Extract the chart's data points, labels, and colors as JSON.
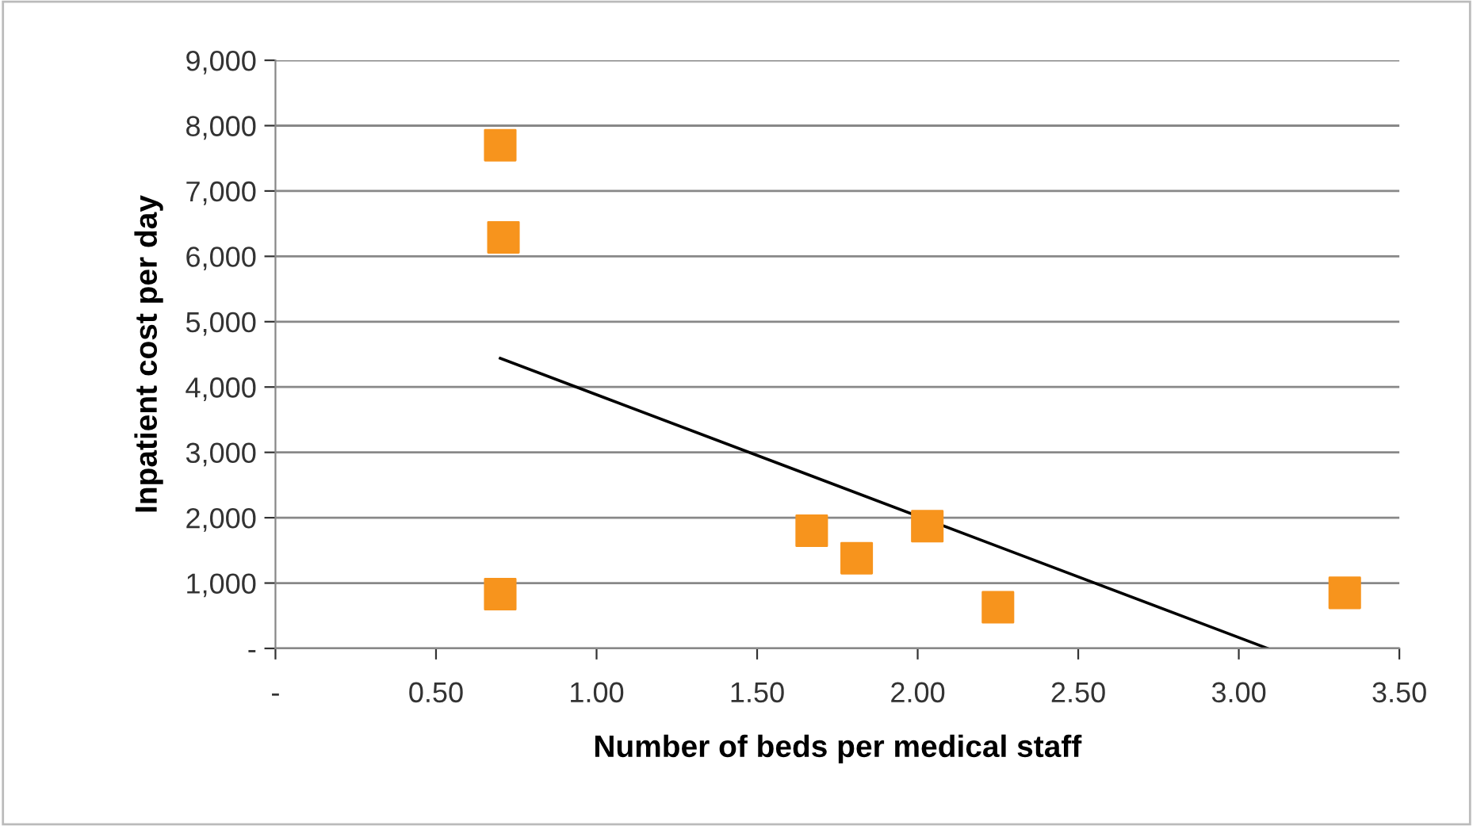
{
  "chart_data": {
    "type": "scatter",
    "xlabel": "Number of beds per medical staff",
    "ylabel": "Inpatient cost per day",
    "xlim": [
      0,
      3.5
    ],
    "xticks": [
      {
        "value": 0,
        "label": "-"
      },
      {
        "value": 0.5,
        "label": "0.50"
      },
      {
        "value": 1,
        "label": "1.00"
      },
      {
        "value": 1.5,
        "label": "1.50"
      },
      {
        "value": 2,
        "label": "2.00"
      },
      {
        "value": 2.5,
        "label": "2.50"
      },
      {
        "value": 3,
        "label": "3.00"
      },
      {
        "value": 3.5,
        "label": "3.50"
      }
    ],
    "ylim": [
      0,
      9000
    ],
    "yticks": [
      {
        "value": 0,
        "label": "-"
      },
      {
        "value": 1000,
        "label": "1,000"
      },
      {
        "value": 2000,
        "label": "2,000"
      },
      {
        "value": 3000,
        "label": "3,000"
      },
      {
        "value": 4000,
        "label": "4,000"
      },
      {
        "value": 5000,
        "label": "5,000"
      },
      {
        "value": 6000,
        "label": "6,000"
      },
      {
        "value": 7000,
        "label": "7,000"
      },
      {
        "value": 8000,
        "label": "8,000"
      },
      {
        "value": 9000,
        "label": "9,000"
      }
    ],
    "grid": "y",
    "marker": "square",
    "legend": false,
    "series": [
      {
        "color": "#f7941d",
        "x": [
          0.7,
          0.71,
          0.7,
          1.67,
          1.81,
          2.03,
          2.25,
          3.33
        ],
        "values": [
          7700,
          6290,
          830,
          1800,
          1380,
          1870,
          630,
          850
        ]
      },
      {
        "type": "line",
        "color": "#000000",
        "marker": "none",
        "x": [
          0.7,
          3.09
        ],
        "values": [
          4440,
          0
        ]
      }
    ]
  }
}
